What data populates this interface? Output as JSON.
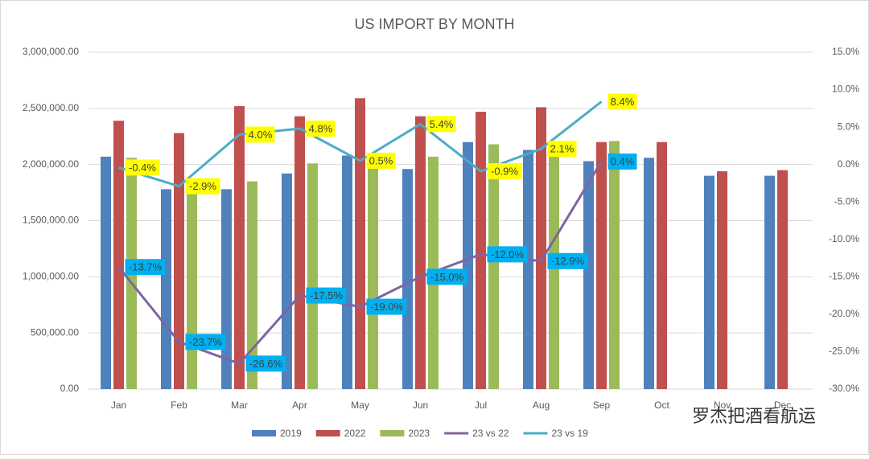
{
  "chart_data": {
    "type": "bar-line",
    "title": "US IMPORT BY MONTH",
    "categories": [
      "Jan",
      "Feb",
      "Mar",
      "Apr",
      "May",
      "Jun",
      "Jul",
      "Aug",
      "Sep",
      "Oct",
      "Nov",
      "Dec"
    ],
    "series": [
      {
        "name": "2019",
        "type": "bar",
        "color": "#4f81bd",
        "values": [
          2070000,
          1780000,
          1780000,
          1920000,
          2080000,
          1960000,
          2200000,
          2130000,
          2030000,
          2060000,
          1900000,
          1900000
        ]
      },
      {
        "name": "2022",
        "type": "bar",
        "color": "#c0504d",
        "values": [
          2390000,
          2280000,
          2520000,
          2430000,
          2590000,
          2430000,
          2470000,
          2510000,
          2200000,
          2200000,
          1940000,
          1950000
        ]
      },
      {
        "name": "2023",
        "type": "bar",
        "color": "#9bbb59",
        "values": [
          2060000,
          1740000,
          1850000,
          2010000,
          2100000,
          2070000,
          2180000,
          2190000,
          2210000,
          null,
          null,
          null
        ]
      },
      {
        "name": "23 vs 22",
        "type": "line",
        "axis": "y2",
        "color": "#8064a2",
        "label_color": "#00b0f0",
        "values": [
          -13.7,
          -23.7,
          -26.6,
          -17.5,
          -19.0,
          -15.0,
          -12.0,
          -12.9,
          0.4,
          null,
          null,
          null
        ],
        "value_labels": [
          "-13.7%",
          "-23.7%",
          "-26.6%",
          "-17.5%",
          "-19.0%",
          "-15.0%",
          "-12.0%",
          "-12.9%",
          "0.4%",
          null,
          null,
          null
        ]
      },
      {
        "name": "23 vs 19",
        "type": "line",
        "axis": "y2",
        "color": "#4bacc6",
        "label_color": "#ffff00",
        "values": [
          -0.4,
          -2.9,
          4.0,
          4.8,
          0.5,
          5.4,
          -0.9,
          2.1,
          8.4,
          null,
          null,
          null
        ],
        "value_labels": [
          "-0.4%",
          "-2.9%",
          "4.0%",
          "4.8%",
          "0.5%",
          "5.4%",
          "-0.9%",
          "2.1%",
          "8.4%",
          null,
          null,
          null
        ]
      }
    ],
    "ylim": [
      0,
      3000000
    ],
    "yticks": [
      {
        "value": 0,
        "label": "0.00"
      },
      {
        "value": 500000,
        "label": "500,000.00"
      },
      {
        "value": 1000000,
        "label": "1,000,000.00"
      },
      {
        "value": 1500000,
        "label": "1,500,000.00"
      },
      {
        "value": 2000000,
        "label": "2,000,000.00"
      },
      {
        "value": 2500000,
        "label": "2,500,000.00"
      },
      {
        "value": 3000000,
        "label": "3,000,000.00"
      }
    ],
    "y2lim": [
      -30,
      15
    ],
    "y2ticks": [
      {
        "value": -30,
        "label": "-30.0%"
      },
      {
        "value": -25,
        "label": "-25.0%"
      },
      {
        "value": -20,
        "label": "-20.0%"
      },
      {
        "value": -15,
        "label": "-15.0%"
      },
      {
        "value": -10,
        "label": "-10.0%"
      },
      {
        "value": -5,
        "label": "-5.0%"
      },
      {
        "value": 0,
        "label": "0.0%"
      },
      {
        "value": 5,
        "label": "5.0%"
      },
      {
        "value": 10,
        "label": "10.0%"
      },
      {
        "value": 15,
        "label": "15.0%"
      }
    ],
    "grid": true,
    "legend": "bottom",
    "watermark": "罗杰把酒看航运"
  }
}
